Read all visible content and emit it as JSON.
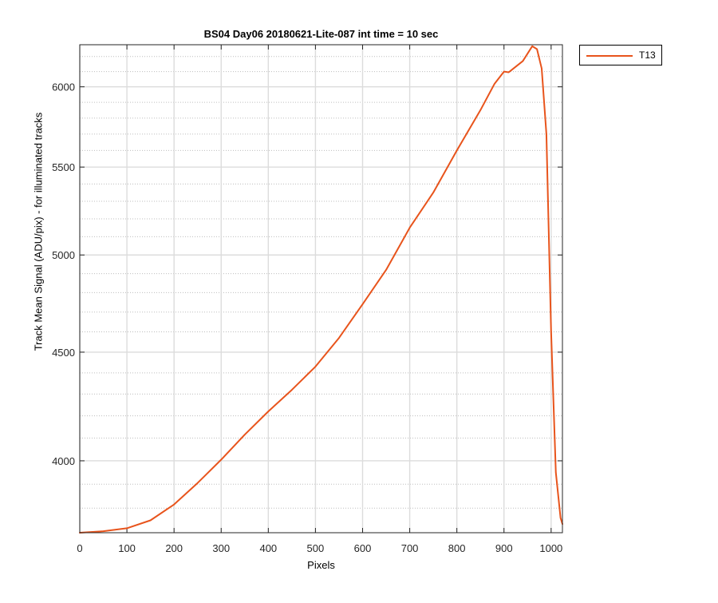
{
  "chart_data": {
    "type": "line",
    "title": "BS04 Day06 20180621-Lite-087 int time = 10 sec",
    "xlabel": "Pixels",
    "ylabel": "Track Mean Signal (ADU/pix) - for illuminated tracks",
    "xlim": [
      0,
      1024
    ],
    "ylim": [
      3700,
      6280
    ],
    "yscale": "log",
    "grid": true,
    "minor_grid": true,
    "legend_position": "outside-top-right",
    "x_ticks": [
      0,
      100,
      200,
      300,
      400,
      500,
      600,
      700,
      800,
      900,
      1000
    ],
    "x_tick_labels": [
      "0",
      "100",
      "200",
      "300",
      "400",
      "500",
      "600",
      "700",
      "800",
      "900",
      "1000"
    ],
    "y_ticks": [
      4000,
      4500,
      5000,
      5500,
      6000
    ],
    "y_tick_labels": [
      "4000",
      "4500",
      "5000",
      "5500",
      "6000"
    ],
    "series": [
      {
        "name": "T13",
        "color": "#e8541c",
        "x": [
          0,
          50,
          100,
          150,
          200,
          250,
          300,
          350,
          400,
          450,
          500,
          550,
          600,
          650,
          700,
          750,
          800,
          850,
          880,
          900,
          910,
          920,
          940,
          960,
          970,
          980,
          990,
          1000,
          1010,
          1020,
          1024
        ],
        "y": [
          3700,
          3706,
          3718,
          3750,
          3815,
          3905,
          4005,
          4115,
          4220,
          4320,
          4430,
          4570,
          4740,
          4920,
          5150,
          5350,
          5600,
          5850,
          6020,
          6100,
          6095,
          6120,
          6170,
          6270,
          6250,
          6120,
          5700,
          4600,
          3950,
          3760,
          3735
        ]
      }
    ]
  }
}
